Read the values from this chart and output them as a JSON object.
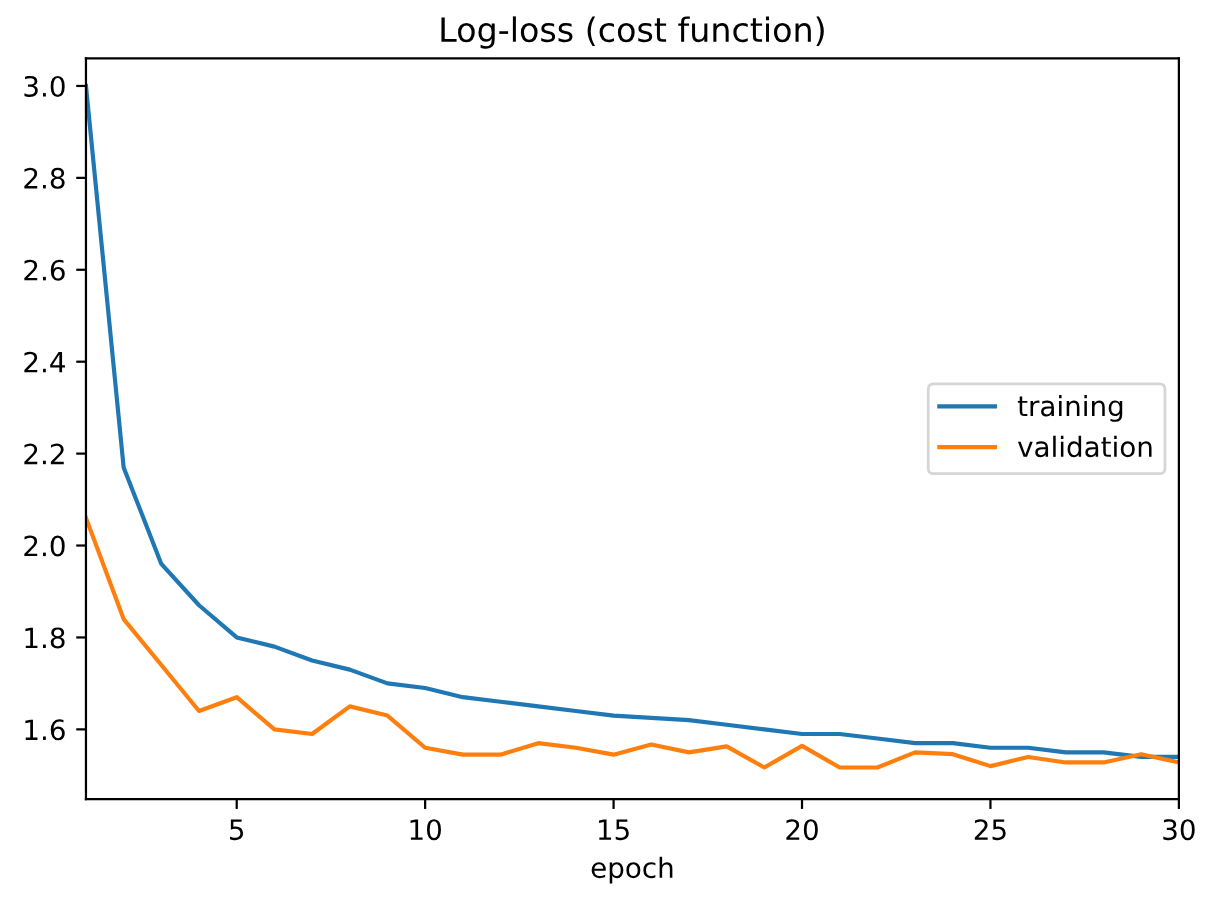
{
  "chart_data": {
    "type": "line",
    "title": "Log-loss (cost function)",
    "xlabel": "epoch",
    "x": [
      1,
      2,
      3,
      4,
      5,
      6,
      7,
      8,
      9,
      10,
      11,
      12,
      13,
      14,
      15,
      16,
      17,
      18,
      19,
      20,
      21,
      22,
      23,
      24,
      25,
      26,
      27,
      28,
      29,
      30
    ],
    "series": [
      {
        "name": "training",
        "color": "#1f77b4",
        "values": [
          3.0,
          2.17,
          1.96,
          1.87,
          1.8,
          1.78,
          1.75,
          1.73,
          1.7,
          1.69,
          1.67,
          1.66,
          1.65,
          1.64,
          1.63,
          1.625,
          1.62,
          1.61,
          1.6,
          1.59,
          1.59,
          1.58,
          1.57,
          1.57,
          1.56,
          1.56,
          1.55,
          1.55,
          1.54,
          1.54
        ]
      },
      {
        "name": "validation",
        "color": "#ff7f0e",
        "values": [
          2.06,
          1.84,
          1.74,
          1.64,
          1.67,
          1.6,
          1.59,
          1.65,
          1.63,
          1.56,
          1.545,
          1.545,
          1.57,
          1.56,
          1.545,
          1.567,
          1.55,
          1.563,
          1.517,
          1.564,
          1.517,
          1.517,
          1.55,
          1.546,
          1.52,
          1.54,
          1.528,
          1.528,
          1.546,
          1.528
        ]
      }
    ],
    "xlim": [
      1,
      30
    ],
    "ylim": [
      1.448,
      3.06
    ],
    "xticks": [
      5,
      10,
      15,
      20,
      25,
      30
    ],
    "yticks": [
      1.6,
      1.8,
      {
        "value": 2,
        "label": "2.0"
      },
      2.2,
      2.4,
      2.6,
      2.8,
      {
        "value": 3,
        "label": "3.0"
      }
    ],
    "grid": false,
    "legend": "center right"
  }
}
